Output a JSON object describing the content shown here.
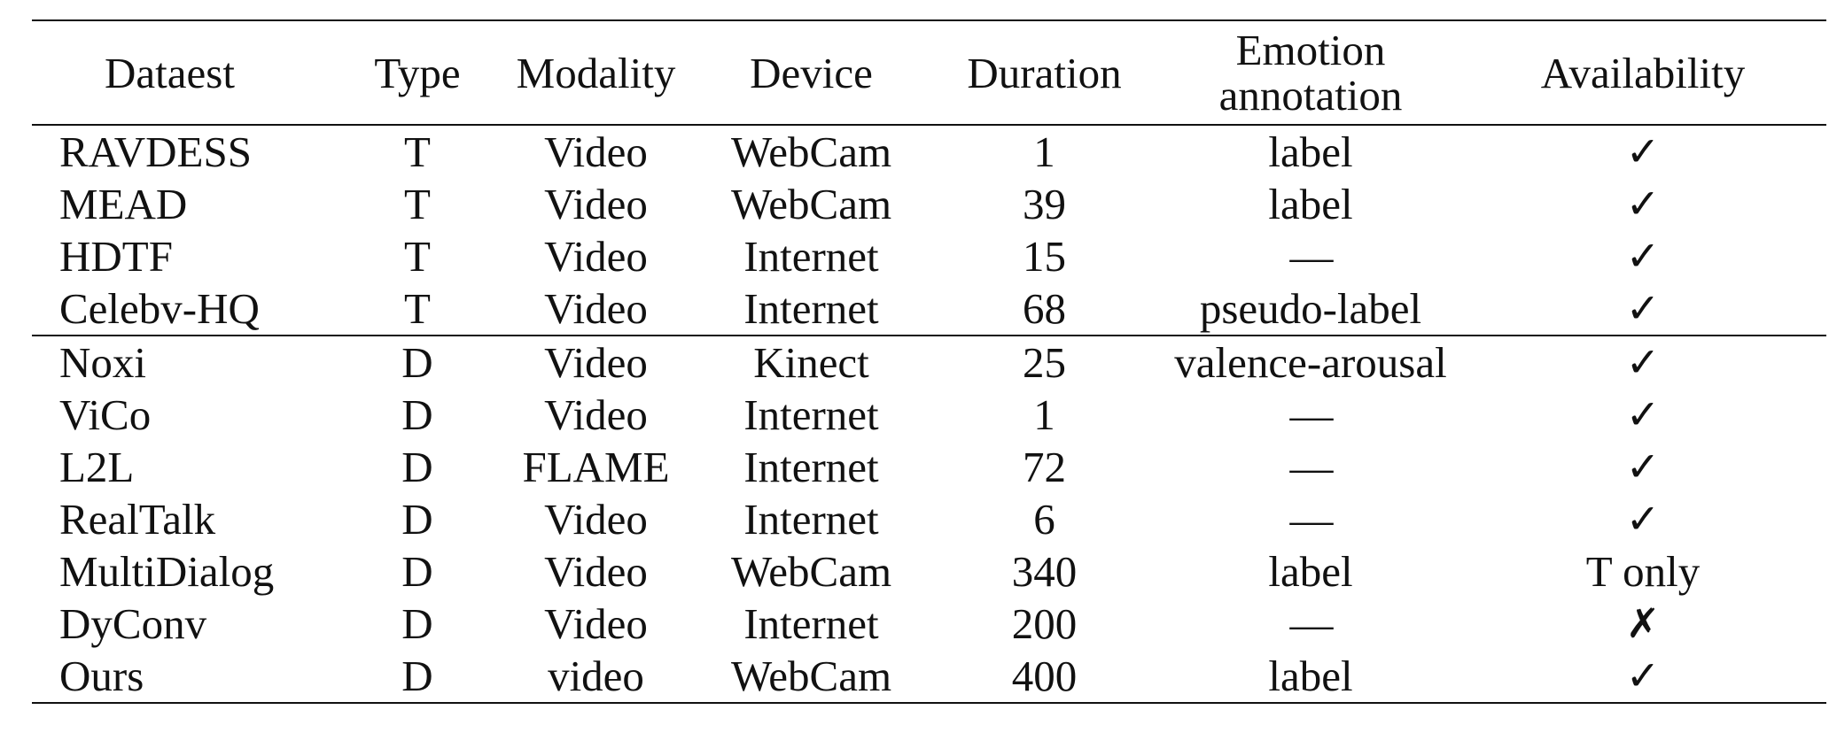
{
  "table": {
    "headers": [
      {
        "key": "dataset",
        "lines": [
          "Dataest"
        ]
      },
      {
        "key": "type",
        "lines": [
          "Type"
        ]
      },
      {
        "key": "modality",
        "lines": [
          "Modality"
        ]
      },
      {
        "key": "device",
        "lines": [
          "Device"
        ]
      },
      {
        "key": "duration",
        "lines": [
          "Duration"
        ]
      },
      {
        "key": "emotion",
        "lines": [
          "Emotion",
          "annotation"
        ]
      },
      {
        "key": "availability",
        "lines": [
          "Availability"
        ]
      }
    ],
    "groups": [
      {
        "rows": [
          [
            "RAVDESS",
            "T",
            "Video",
            "WebCam",
            "1",
            "label",
            "✓"
          ],
          [
            "MEAD",
            "T",
            "Video",
            "WebCam",
            "39",
            "label",
            "✓"
          ],
          [
            "HDTF",
            "T",
            "Video",
            "Internet",
            "15",
            "—",
            "✓"
          ],
          [
            "Celebv-HQ",
            "T",
            "Video",
            "Internet",
            "68",
            "pseudo-label",
            "✓"
          ]
        ]
      },
      {
        "rows": [
          [
            "Noxi",
            "D",
            "Video",
            "Kinect",
            "25",
            "valence-arousal",
            "✓"
          ],
          [
            "ViCo",
            "D",
            "Video",
            "Internet",
            "1",
            "—",
            "✓"
          ],
          [
            "L2L",
            "D",
            "FLAME",
            "Internet",
            "72",
            "—",
            "✓"
          ],
          [
            "RealTalk",
            "D",
            "Video",
            "Internet",
            "6",
            "—",
            "✓"
          ],
          [
            "MultiDialog",
            "D",
            "Video",
            "WebCam",
            "340",
            "label",
            "T only"
          ],
          [
            "DyConv",
            "D",
            "Video",
            "Internet",
            "200",
            "—",
            "✗"
          ],
          [
            "Ours",
            "D",
            "video",
            "WebCam",
            "400",
            "label",
            "✓"
          ]
        ]
      }
    ]
  }
}
